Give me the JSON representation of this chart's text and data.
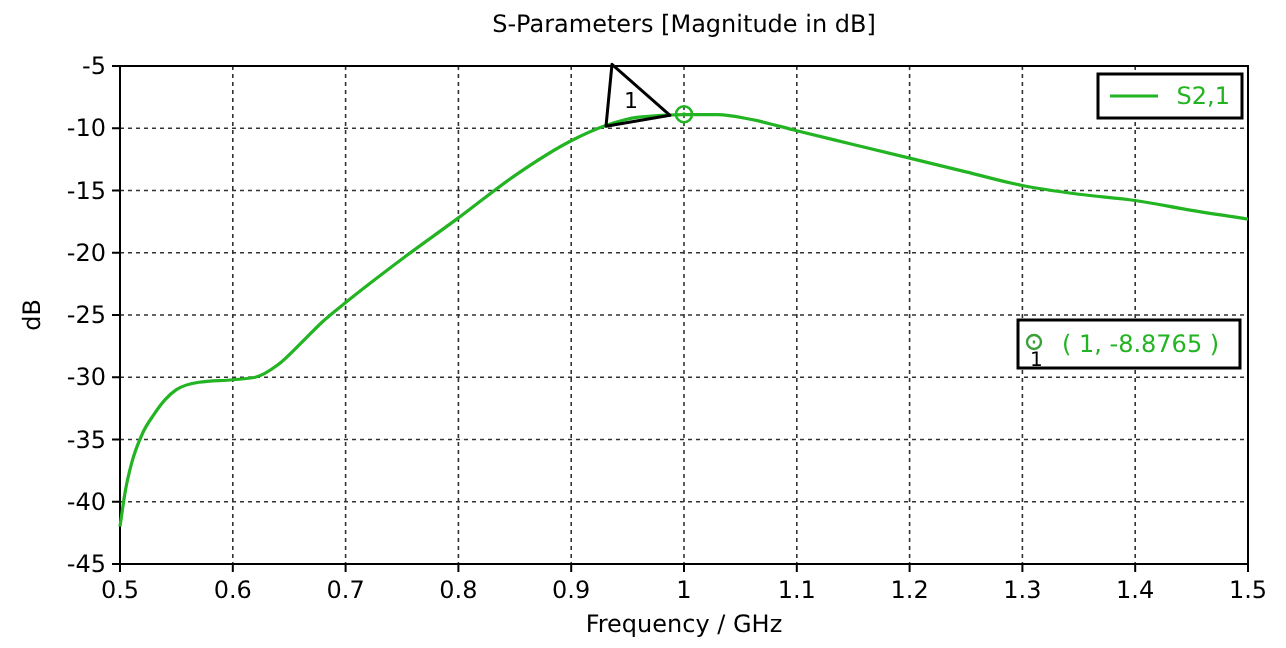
{
  "chart_data": {
    "type": "line",
    "title": "S-Parameters [Magnitude in dB]",
    "xlabel": "Frequency / GHz",
    "ylabel": "dB",
    "xlim": [
      0.5,
      1.5
    ],
    "xticks": [
      0.5,
      0.6,
      0.7,
      0.8,
      0.9,
      1,
      1.1,
      1.2,
      1.3,
      1.4,
      1.5
    ],
    "ylim": [
      -45,
      -5
    ],
    "yticks": [
      -45,
      -40,
      -35,
      -30,
      -25,
      -20,
      -15,
      -10,
      -5
    ],
    "grid": true,
    "legend": "top right",
    "series": [
      {
        "name": "S2,1",
        "color": "#22b422",
        "x": [
          0.5,
          0.505,
          0.51,
          0.52,
          0.53,
          0.54,
          0.55,
          0.57,
          0.6,
          0.62,
          0.64,
          0.66,
          0.68,
          0.7,
          0.75,
          0.8,
          0.85,
          0.9,
          0.93,
          0.96,
          1.0,
          1.03,
          1.06,
          1.1,
          1.15,
          1.2,
          1.25,
          1.3,
          1.35,
          1.4,
          1.45,
          1.5
        ],
        "values": [
          -42,
          -39,
          -37,
          -34.5,
          -33,
          -31.8,
          -31,
          -30.4,
          -30.2,
          -30,
          -29,
          -27.3,
          -25.5,
          -24,
          -20.5,
          -17.2,
          -13.8,
          -11,
          -9.8,
          -9.1,
          -8.9,
          -8.9,
          -9.3,
          -10.2,
          -11.3,
          -12.4,
          -13.5,
          -14.6,
          -15.3,
          -15.8,
          -16.6,
          -17.3
        ]
      }
    ],
    "annotations": [
      {
        "text": "1",
        "x": 1,
        "y": -8.8765
      },
      "1",
      "( 1, -8.8765 )"
    ]
  }
}
